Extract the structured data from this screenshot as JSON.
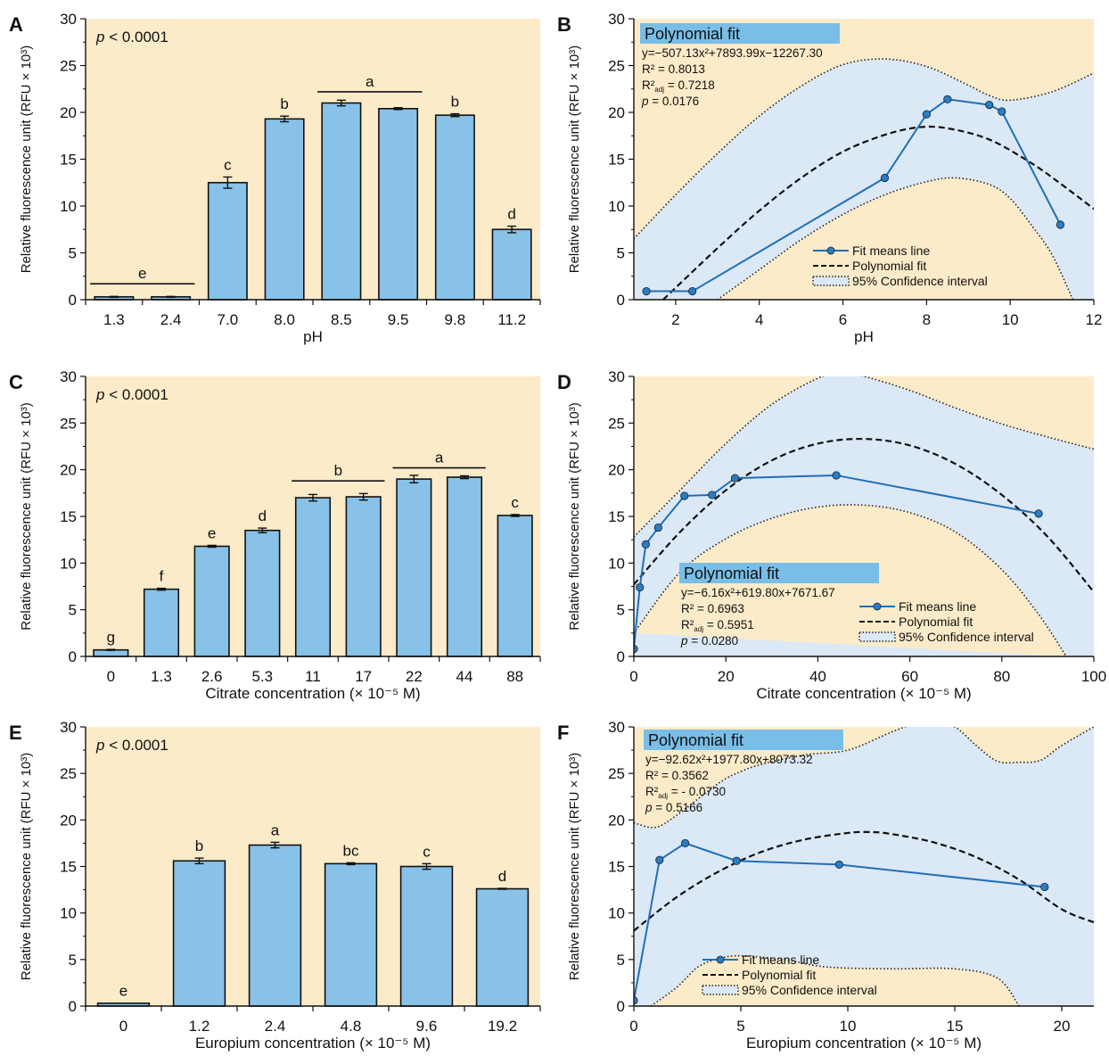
{
  "figure": {
    "common_ylabel": "Relative fluorescence unit (RFU × 10³)",
    "colors": {
      "plot_bg": "#fcebc9",
      "bar": "#88c2e8",
      "ci_fill": "#dbe8f5",
      "line": "#1f6fb8",
      "point": "#2d7cc0",
      "fit": "#111111",
      "header_box": "#79bee6"
    }
  },
  "chart_data": [
    {
      "id": "A",
      "type": "bar",
      "panel_label": "A",
      "xlabel": "pH",
      "ylabel": "Relative fluorescence unit (RFU × 10³)",
      "ylim": [
        0,
        30
      ],
      "yticks": [
        0,
        5,
        10,
        15,
        20,
        25,
        30
      ],
      "annotation": "p < 0.0001",
      "categories": [
        "1.3",
        "2.4",
        "7.0",
        "8.0",
        "8.5",
        "9.5",
        "9.8",
        "11.2"
      ],
      "values": [
        0.3,
        0.3,
        12.5,
        19.3,
        21.0,
        20.4,
        19.7,
        7.5
      ],
      "errors": [
        0.05,
        0.05,
        0.6,
        0.3,
        0.3,
        0.1,
        0.15,
        0.35
      ],
      "letters": [
        "",
        "",
        "c",
        "b",
        "",
        "",
        "b",
        "d"
      ],
      "group_labels": [
        {
          "label": "e",
          "from": 0,
          "to": 1,
          "y": 1.7
        },
        {
          "label": "a",
          "from": 4,
          "to": 5,
          "y": 22.2
        }
      ]
    },
    {
      "id": "B",
      "type": "line",
      "panel_label": "B",
      "xlabel": "pH",
      "ylabel": "Relative fluorescence unit (RFU × 10³)",
      "xlim": [
        1,
        12
      ],
      "ylim": [
        0,
        30
      ],
      "xticks": [
        2,
        4,
        6,
        8,
        10,
        12
      ],
      "yticks": [
        0,
        5,
        10,
        15,
        20,
        25,
        30
      ],
      "fit_title": "Polynomial fit",
      "equation": "y=−507.13x²+7893.99x−12267.30",
      "r2": "R² = 0.8013",
      "r2adj": "R²adj = 0.7218",
      "pval": "p = 0.0176",
      "legend": [
        "Fit means line",
        "Polynomial fit",
        "95% Confidence interval"
      ],
      "points": {
        "x": [
          1.3,
          2.4,
          7.0,
          8.0,
          8.5,
          9.5,
          9.8,
          11.2
        ],
        "y": [
          0.9,
          0.9,
          13.0,
          19.8,
          21.4,
          20.8,
          20.1,
          8.0
        ]
      },
      "fit": {
        "x": [
          1.7,
          3,
          4,
          5,
          6,
          7,
          7.8,
          8.5,
          9.5,
          10.5,
          11.2,
          12
        ],
        "y": [
          0,
          5.5,
          9.5,
          13.0,
          15.8,
          17.6,
          18.4,
          18.3,
          17.1,
          14.6,
          12.4,
          9.7
        ]
      },
      "ci_upper": {
        "x": [
          1,
          2,
          3,
          4,
          5,
          6,
          7,
          8,
          9,
          9.5,
          10,
          11,
          12
        ],
        "y": [
          6.5,
          11.2,
          15.6,
          19.6,
          22.8,
          25.1,
          25.7,
          24.9,
          22.9,
          21.8,
          21.3,
          22.2,
          24.2
        ]
      },
      "ci_lower": {
        "x": [
          3,
          4,
          5,
          6,
          7,
          8,
          8.7,
          9.5,
          10,
          10.5,
          11,
          11.5
        ],
        "y": [
          0,
          3.2,
          6.4,
          9.1,
          11.2,
          12.6,
          13.0,
          12.3,
          10.8,
          8.0,
          4.8,
          0
        ]
      }
    },
    {
      "id": "C",
      "type": "bar",
      "panel_label": "C",
      "xlabel": "Citrate concentration (× 10⁻⁵ M)",
      "ylabel": "Relative fluorescence unit (RFU × 10³)",
      "ylim": [
        0,
        30
      ],
      "yticks": [
        0,
        5,
        10,
        15,
        20,
        25,
        30
      ],
      "annotation": "p < 0.0001",
      "categories": [
        "0",
        "1.3",
        "2.6",
        "5.3",
        "11",
        "17",
        "22",
        "44",
        "88"
      ],
      "values": [
        0.7,
        7.2,
        11.8,
        13.5,
        17.0,
        17.1,
        19.0,
        19.2,
        15.1
      ],
      "errors": [
        0.05,
        0.1,
        0.1,
        0.25,
        0.35,
        0.35,
        0.4,
        0.15,
        0.1
      ],
      "letters": [
        "g",
        "f",
        "e",
        "d",
        "",
        "",
        "",
        "",
        "c"
      ],
      "group_labels": [
        {
          "label": "b",
          "from": 4,
          "to": 5,
          "y": 18.8
        },
        {
          "label": "a",
          "from": 6,
          "to": 7,
          "y": 20.2
        }
      ]
    },
    {
      "id": "D",
      "type": "line",
      "panel_label": "D",
      "xlabel": "Citrate concentration (× 10⁻⁵ M)",
      "ylabel": "Relative fluorescence unit (RFU × 10³)",
      "xlim": [
        0,
        100
      ],
      "ylim": [
        0,
        30
      ],
      "xticks": [
        0,
        20,
        40,
        60,
        80,
        100
      ],
      "yticks": [
        0,
        5,
        10,
        15,
        20,
        25,
        30
      ],
      "fit_title": "Polynomial fit",
      "equation": "y=−6.16x²+619.80x+7671.67",
      "r2": "R² = 0.6963",
      "r2adj": "R²adj = 0.5951",
      "pval": "p = 0.0280",
      "legend": [
        "Fit means line",
        "Polynomial fit",
        "95% Confidence interval"
      ],
      "points": {
        "x": [
          0,
          1.3,
          2.6,
          5.3,
          11,
          17,
          22,
          44,
          88
        ],
        "y": [
          0.8,
          7.4,
          12.0,
          13.8,
          17.2,
          17.3,
          19.1,
          19.4,
          15.3
        ]
      },
      "fit": {
        "x": [
          0,
          10,
          20,
          30,
          40,
          50,
          60,
          70,
          80,
          90,
          100
        ],
        "y": [
          7.7,
          13.3,
          17.8,
          21.0,
          22.8,
          23.3,
          22.6,
          20.6,
          17.3,
          12.8,
          6.9
        ]
      },
      "ci_upper": {
        "x": [
          0,
          10,
          20,
          30,
          40,
          45,
          50,
          60,
          70,
          80,
          90,
          100
        ],
        "y": [
          12.8,
          17.8,
          22.8,
          27.0,
          29.8,
          30.3,
          30.0,
          28.5,
          26.6,
          24.9,
          23.5,
          22.2
        ]
      },
      "ci_lower": {
        "x": [
          0,
          10,
          20,
          30,
          40,
          50,
          60,
          70,
          80,
          88,
          94
        ],
        "y": [
          2.5,
          9.0,
          12.6,
          14.8,
          16.0,
          16.2,
          15.4,
          13.3,
          9.3,
          4.5,
          0
        ]
      }
    },
    {
      "id": "E",
      "type": "bar",
      "panel_label": "E",
      "xlabel": "Europium concentration (× 10⁻⁵ M)",
      "ylabel": "Relative fluorescence unit (RFU × 10³)",
      "ylim": [
        0,
        30
      ],
      "yticks": [
        0,
        5,
        10,
        15,
        20,
        25,
        30
      ],
      "annotation": "p < 0.0001",
      "categories": [
        "0",
        "1.2",
        "2.4",
        "4.8",
        "9.6",
        "19.2"
      ],
      "values": [
        0.3,
        15.6,
        17.3,
        15.3,
        15.0,
        12.6
      ],
      "errors": [
        0.03,
        0.3,
        0.3,
        0.1,
        0.3,
        0.05
      ],
      "letters": [
        "e",
        "b",
        "a",
        "bc",
        "c",
        "d"
      ],
      "group_labels": []
    },
    {
      "id": "F",
      "type": "line",
      "panel_label": "F",
      "xlabel": "Europium concentration (× 10⁻⁵ M)",
      "ylabel": "Relative fluorescence unit (RFU × 10³)",
      "xlim": [
        0,
        21.5
      ],
      "ylim": [
        0,
        30
      ],
      "xticks": [
        0,
        5,
        10,
        15,
        20
      ],
      "yticks": [
        0,
        5,
        10,
        15,
        20,
        25,
        30
      ],
      "fit_title": "Polynomial fit",
      "equation": "y=−92.62x²+1977.80x+8073.32",
      "r2": "R² = 0.3562",
      "r2adj": "R²adj = - 0.0730",
      "pval": "p = 0.5166",
      "legend": [
        "Fit means line",
        "Polynomial fit",
        "95% Confidence interval"
      ],
      "points": {
        "x": [
          0,
          1.2,
          2.4,
          4.8,
          9.6,
          19.2
        ],
        "y": [
          0.6,
          15.7,
          17.5,
          15.6,
          15.2,
          12.8
        ]
      },
      "fit": {
        "x": [
          0,
          2,
          4,
          6,
          8,
          10,
          11,
          12,
          14,
          16,
          18,
          20,
          21.5
        ],
        "y": [
          8.1,
          11.7,
          14.5,
          16.6,
          17.9,
          18.6,
          18.7,
          18.5,
          17.6,
          16.0,
          13.6,
          10.4,
          9.0
        ]
      },
      "ci_upper": {
        "x": [
          0,
          1,
          2,
          4,
          5,
          6,
          8,
          10,
          12,
          13,
          14,
          15,
          16,
          17,
          18,
          19,
          20,
          21.5
        ],
        "y": [
          19.7,
          19.2,
          20.5,
          24.0,
          25.2,
          26.0,
          27.0,
          27.5,
          29.4,
          30.2,
          30.3,
          30.0,
          28.0,
          26.3,
          26.2,
          26.4,
          28.0,
          30.0
        ]
      },
      "ci_lower": {
        "x": [
          0.8,
          2,
          3,
          4,
          5,
          7,
          9,
          12,
          15,
          17,
          18
        ],
        "y": [
          0,
          2.0,
          4.2,
          5.1,
          5.4,
          5.0,
          4.2,
          4.0,
          4.0,
          3.0,
          0
        ]
      }
    }
  ]
}
